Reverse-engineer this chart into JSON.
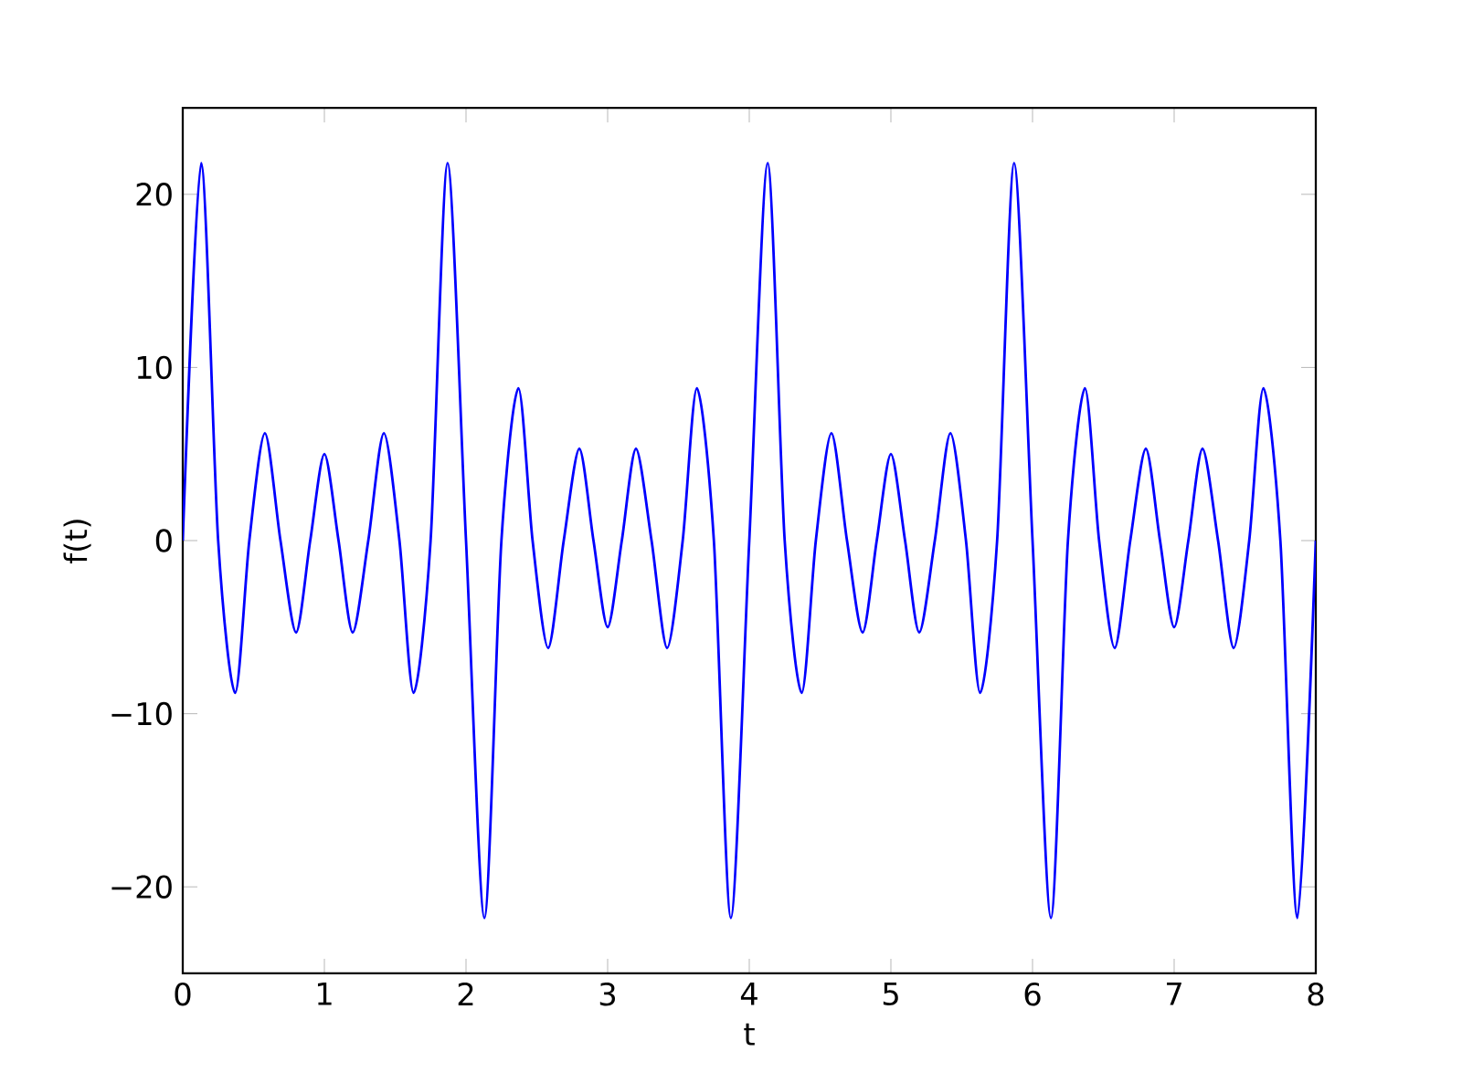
{
  "chart_data": {
    "type": "line",
    "xlabel": "t",
    "ylabel": "f(t)",
    "xlim": [
      0,
      8
    ],
    "ylim": [
      -25,
      25
    ],
    "xticks": [
      0,
      1,
      2,
      3,
      4,
      5,
      6,
      7,
      8
    ],
    "yticks": [
      {
        "value": -20,
        "label": "−20"
      },
      {
        "value": -10,
        "label": "−10"
      },
      0,
      10,
      20
    ],
    "marker": "none",
    "line_style": "solid",
    "series": [
      {
        "color": "#0000ff",
        "x": [
          0,
          0.13,
          0.25,
          0.37,
          0.47,
          0.58,
          0.69,
          0.8,
          0.9,
          1.0,
          1.1,
          1.2,
          1.31,
          1.42,
          1.53,
          1.63,
          1.75,
          1.87,
          2.0,
          2.13,
          2.25,
          2.37,
          2.47,
          2.58,
          2.69,
          2.8,
          2.9,
          3.0,
          3.1,
          3.2,
          3.31,
          3.42,
          3.53,
          3.63,
          3.75,
          3.87,
          4.0,
          4.13,
          4.25,
          4.37,
          4.47,
          4.58,
          4.69,
          4.8,
          4.9,
          5.0,
          5.1,
          5.2,
          5.31,
          5.42,
          5.53,
          5.63,
          5.75,
          5.87,
          6.0,
          6.13,
          6.25,
          6.37,
          6.47,
          6.58,
          6.69,
          6.8,
          6.9,
          7.0,
          7.1,
          7.2,
          7.31,
          7.42,
          7.53,
          7.63,
          7.75,
          7.87,
          8.0
        ],
        "values": [
          0,
          21.8,
          0,
          -8.8,
          0,
          6.2,
          0,
          -5.3,
          0,
          5.0,
          0,
          -5.3,
          0,
          6.2,
          0,
          -8.8,
          0,
          21.8,
          0,
          -21.8,
          0,
          8.8,
          0,
          -6.2,
          0,
          5.3,
          0,
          -5.0,
          0,
          5.3,
          0,
          -6.2,
          0,
          8.8,
          0,
          -21.8,
          0,
          21.8,
          0,
          -8.8,
          0,
          6.2,
          0,
          -5.3,
          0,
          5.0,
          0,
          -5.3,
          0,
          6.2,
          0,
          -8.8,
          0,
          21.8,
          0,
          -21.8,
          0,
          8.8,
          0,
          -6.2,
          0,
          5.3,
          0,
          -5.0,
          0,
          5.3,
          0,
          -6.2,
          0,
          8.8,
          0,
          -21.8,
          0
        ]
      }
    ]
  }
}
